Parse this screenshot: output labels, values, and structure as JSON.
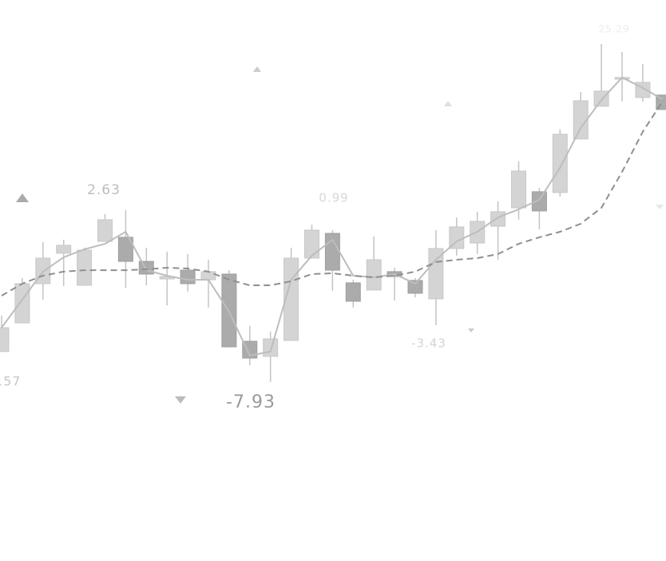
{
  "chart_data": {
    "type": "candlestick",
    "open": [
      -6.06,
      -4.3,
      -1.89,
      -0.02,
      -1.99,
      0.71,
      0.96,
      -0.52,
      -1.6,
      -1.06,
      -1.65,
      -1.3,
      -5.43,
      -6.36,
      -5.38,
      -0.32,
      1.2,
      -1.84,
      -2.28,
      -1.15,
      -1.69,
      -2.82,
      0.27,
      0.61,
      1.64,
      2.77,
      3.76,
      3.71,
      7.0,
      9.01,
      10.68,
      9.55,
      9.7
    ],
    "high": [
      -3.85,
      -1.55,
      0.66,
      0.81,
      0.32,
      2.38,
      2.63,
      0.32,
      0.07,
      -0.07,
      -0.42,
      -1.06,
      -4.49,
      -4.84,
      0.32,
      1.74,
      1.4,
      -1.65,
      1.01,
      -0.91,
      -1.55,
      1.4,
      2.18,
      2.53,
      3.17,
      5.62,
      4.0,
      7.59,
      9.89,
      12.84,
      12.35,
      11.61,
      9.7
    ],
    "low": [
      -6.06,
      -4.3,
      -2.87,
      -2.04,
      -1.99,
      0.71,
      -2.14,
      -1.99,
      -3.22,
      -2.38,
      -3.36,
      -5.77,
      -6.9,
      -7.93,
      -5.38,
      -0.32,
      -2.33,
      -3.36,
      -2.28,
      -2.92,
      -2.73,
      -4.44,
      -0.17,
      -0.07,
      -0.42,
      2.04,
      1.45,
      3.46,
      7.0,
      9.01,
      9.3,
      9.3,
      8.81
    ],
    "close": [
      -4.59,
      -1.89,
      -0.32,
      0.47,
      0.17,
      2.04,
      -0.52,
      -1.3,
      -1.45,
      -1.89,
      -1.15,
      -5.77,
      -6.46,
      -5.28,
      -0.32,
      1.4,
      -1.06,
      -2.97,
      -0.42,
      -1.45,
      -2.48,
      0.27,
      1.6,
      1.94,
      2.53,
      5.03,
      2.58,
      7.29,
      9.35,
      9.94,
      10.78,
      10.48,
      8.81
    ],
    "up_color": "#d4d4d4",
    "down_color": "#ababab",
    "lines": [
      {
        "style": "solid",
        "color": "#bdbdbd",
        "values": [
          -4.59,
          -2.87,
          -1.15,
          -0.27,
          0.22,
          0.56,
          1.3,
          -1.06,
          -1.4,
          -1.65,
          -1.65,
          -3.61,
          -6.31,
          -6.06,
          -1.65,
          -0.17,
          0.81,
          -1.4,
          -1.5,
          -1.3,
          -1.89,
          -0.42,
          0.71,
          1.3,
          2.18,
          2.68,
          3.27,
          5.23,
          7.68,
          9.4,
          10.78,
          10.14,
          9.4
        ]
      },
      {
        "style": "dashed",
        "color": "#8f8f8f",
        "values": [
          -2.63,
          -1.89,
          -1.4,
          -1.15,
          -1.06,
          -1.06,
          -1.06,
          -1.01,
          -0.91,
          -0.96,
          -1.15,
          -1.65,
          -1.99,
          -1.99,
          -1.74,
          -1.3,
          -1.25,
          -1.4,
          -1.5,
          -1.4,
          -1.15,
          -0.56,
          -0.42,
          -0.32,
          -0.07,
          0.56,
          0.96,
          1.3,
          1.79,
          2.77,
          4.98,
          7.44,
          9.4
        ]
      }
    ],
    "annotations": [
      ".57",
      "2.63",
      "-7.93",
      "0.99",
      "-3.43",
      "25.29"
    ],
    "ylim": [
      -18.93,
      15.54
    ]
  }
}
